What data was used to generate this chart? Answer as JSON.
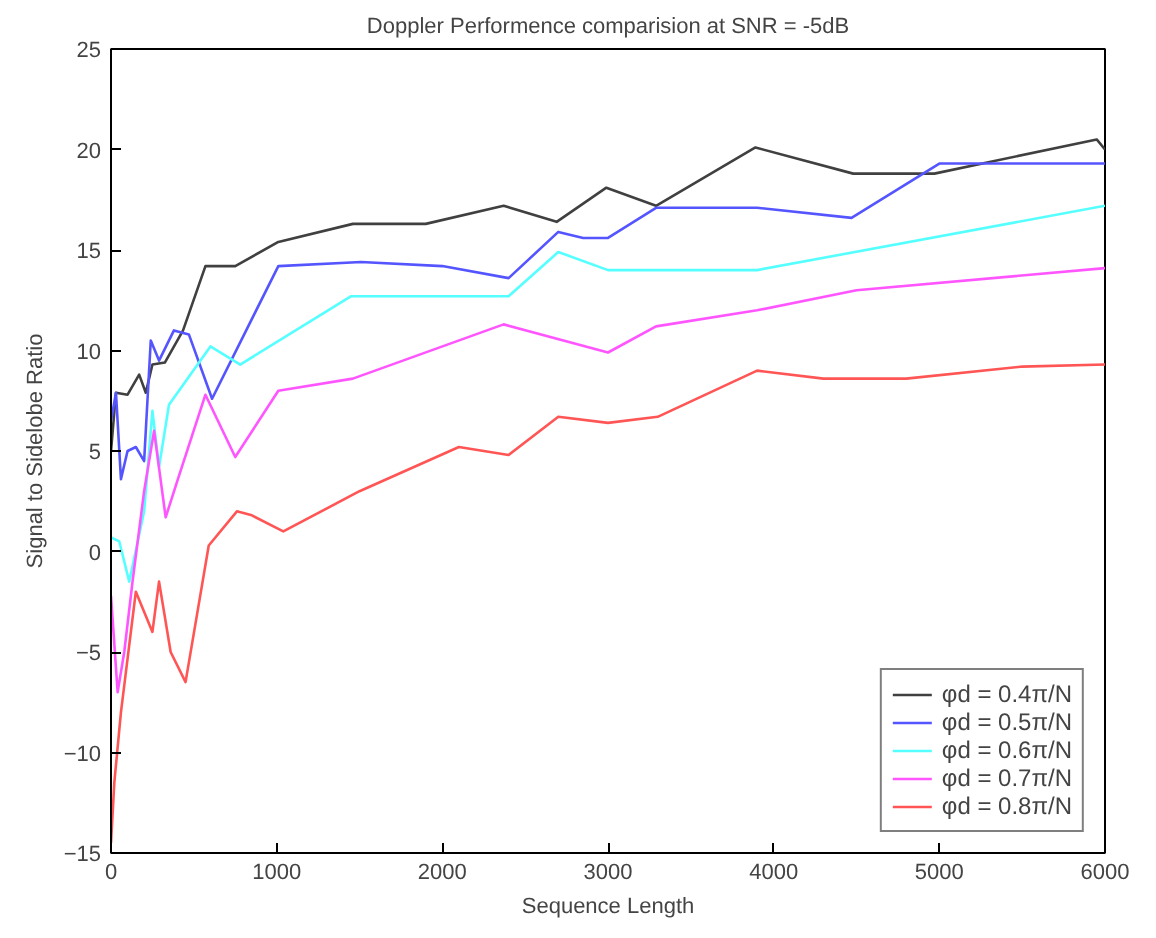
{
  "chart_data": {
    "type": "line",
    "title": "Doppler Performence comparision at SNR = -5dB",
    "xlabel": "Sequence Length",
    "ylabel": "Signal to Sidelobe Ratio",
    "xlim": [
      0,
      6000
    ],
    "xticks": [
      0,
      1000,
      2000,
      3000,
      4000,
      5000,
      6000
    ],
    "ylim": [
      -15,
      25
    ],
    "yticks": [
      -15,
      -10,
      -5,
      0,
      5,
      10,
      15,
      20,
      25
    ],
    "grid": false,
    "legend": "bottom right",
    "line_style": "solid",
    "series": [
      {
        "name": "φd = 0.4π/N",
        "color": "#404040",
        "x": [
          0,
          30,
          100,
          170,
          210,
          250,
          325,
          435,
          570,
          750,
          1010,
          1460,
          1900,
          2370,
          2690,
          2990,
          3290,
          3890,
          4480,
          4970,
          5950,
          6000
        ],
        "values": [
          5,
          7.9,
          7.8,
          8.8,
          7.9,
          9.3,
          9.4,
          11,
          14.2,
          14.2,
          15.4,
          16.3,
          16.3,
          17.2,
          16.4,
          18.1,
          17.2,
          20.1,
          18.8,
          18.8,
          20.5,
          20
        ]
      },
      {
        "name": "φd = 0.5π/N",
        "color": "#5555ff",
        "x": [
          0,
          30,
          60,
          100,
          150,
          200,
          240,
          290,
          380,
          470,
          610,
          1010,
          1510,
          2000,
          2400,
          2700,
          2850,
          3000,
          3290,
          3900,
          4470,
          5000,
          6000
        ],
        "values": [
          6.5,
          7.9,
          3.6,
          5,
          5.2,
          4.5,
          10.5,
          9.5,
          11,
          10.8,
          7.6,
          14.2,
          14.4,
          14.2,
          13.6,
          15.9,
          15.6,
          15.6,
          17.1,
          17.1,
          16.6,
          19.3,
          19.3
        ]
      },
      {
        "name": "φd = 0.6π/N",
        "color": "#55ffff",
        "x": [
          0,
          50,
          110,
          200,
          250,
          290,
          350,
          600,
          780,
          1450,
          2400,
          2700,
          3000,
          3900,
          6000
        ],
        "values": [
          0.7,
          0.5,
          -1.5,
          2,
          7,
          4.2,
          7.3,
          10.2,
          9.3,
          12.7,
          12.7,
          14.9,
          14,
          14,
          17.2
        ]
      },
      {
        "name": "φd = 0.7π/N",
        "color": "#ff55ff",
        "x": [
          0,
          40,
          80,
          130,
          200,
          260,
          330,
          400,
          570,
          750,
          1010,
          1460,
          2370,
          3000,
          3290,
          3900,
          4500,
          6000
        ],
        "values": [
          -2.2,
          -7,
          -5,
          -1.5,
          3,
          6,
          1.7,
          3.5,
          7.8,
          4.7,
          8,
          8.6,
          11.3,
          9.9,
          11.2,
          12,
          13,
          14.1
        ]
      },
      {
        "name": "φd = 0.8π/N",
        "color": "#ff5555",
        "x": [
          0,
          20,
          60,
          150,
          250,
          290,
          360,
          450,
          590,
          760,
          850,
          1040,
          1500,
          2100,
          2400,
          2700,
          3000,
          3300,
          3900,
          4300,
          4800,
          5500,
          6000
        ],
        "values": [
          -14.5,
          -11.5,
          -8,
          -2,
          -4,
          -1.5,
          -5,
          -6.5,
          0.3,
          2,
          1.8,
          1,
          3,
          5.2,
          4.8,
          6.7,
          6.4,
          6.7,
          9,
          8.6,
          8.6,
          9.2,
          9.3
        ]
      }
    ]
  }
}
